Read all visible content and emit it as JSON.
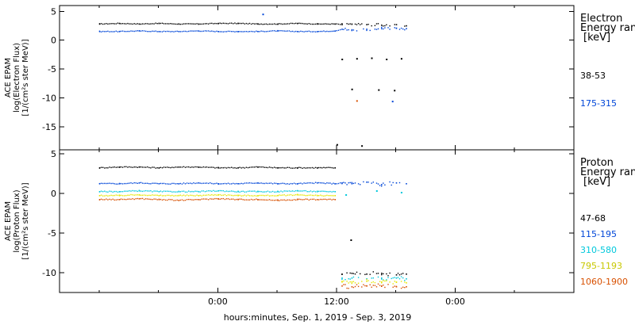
{
  "chart_data": [
    {
      "type": "scatter",
      "ylabel_lines": [
        "ACE EPAM",
        "log(Electron Flux)",
        "[1/(cm²s ster MeV)]"
      ],
      "ylim": [
        -19,
        6
      ],
      "yticks": [
        5,
        0,
        -5,
        -10,
        -15
      ],
      "legend_title": [
        "Electron",
        "Energy ran",
        "[keV]"
      ],
      "series": [
        {
          "name": "38-53",
          "color": "#000000",
          "x": [
            -12,
            -10,
            -8,
            -6,
            -4,
            -2,
            0,
            2,
            4,
            6,
            8,
            10,
            11.8,
            12.5,
            13.5,
            15,
            16.5,
            18,
            19
          ],
          "y": [
            2.9,
            3.0,
            2.9,
            3.0,
            2.9,
            2.9,
            3.0,
            3.0,
            2.9,
            2.9,
            3.0,
            2.9,
            2.9,
            2.8,
            2.9,
            2.8,
            2.7,
            2.8,
            2.6
          ]
        },
        {
          "name": "175-315",
          "color": "#0046d8",
          "x": [
            -12,
            -10,
            -8,
            -6,
            -4,
            -2,
            0,
            2,
            4,
            6,
            8,
            10,
            11.8,
            12.5,
            13.5,
            15,
            16.5,
            18,
            19
          ],
          "y": [
            1.6,
            1.6,
            1.7,
            1.6,
            1.6,
            1.7,
            1.6,
            1.6,
            1.6,
            1.7,
            1.6,
            1.6,
            1.7,
            2.0,
            1.9,
            2.0,
            2.1,
            2.2,
            2.1
          ]
        }
      ],
      "scatter_points": [
        {
          "x": 4.5,
          "y": 4.6,
          "color": "#0046d8"
        },
        {
          "x": 12.5,
          "y": -3.2,
          "color": "#000000"
        },
        {
          "x": 14,
          "y": -3.1,
          "color": "#000000"
        },
        {
          "x": 15.5,
          "y": -3.0,
          "color": "#000000"
        },
        {
          "x": 17,
          "y": -3.2,
          "color": "#000000"
        },
        {
          "x": 18.5,
          "y": -3.1,
          "color": "#000000"
        },
        {
          "x": 13.5,
          "y": -8.4,
          "color": "#000000"
        },
        {
          "x": 16.2,
          "y": -8.5,
          "color": "#000000"
        },
        {
          "x": 17.8,
          "y": -8.6,
          "color": "#000000"
        },
        {
          "x": 14,
          "y": -10.4,
          "color": "#d85000"
        },
        {
          "x": 17.6,
          "y": -10.5,
          "color": "#0046d8"
        },
        {
          "x": 12,
          "y": -18.0,
          "color": "#000000"
        },
        {
          "x": 14.5,
          "y": -18.2,
          "color": "#000000"
        }
      ]
    },
    {
      "type": "scatter",
      "ylabel_lines": [
        "ACE EPAM",
        "log(Proton Flux)",
        "[1/(cm²s ster MeV)]"
      ],
      "ylim": [
        -12.5,
        5.5
      ],
      "yticks": [
        5,
        0,
        -5,
        -10
      ],
      "legend_title": [
        "Proton",
        "Energy ran",
        "[keV]"
      ],
      "series": [
        {
          "name": "47-68",
          "color": "#000000",
          "x": [
            -12,
            -10,
            -8,
            -6,
            -4,
            -2,
            0,
            2,
            4,
            6,
            8,
            10,
            11.8,
            12.5,
            13.5,
            15,
            16.5,
            18,
            19
          ],
          "y": [
            3.3,
            3.4,
            3.4,
            3.3,
            3.4,
            3.4,
            3.3,
            3.3,
            3.4,
            3.3,
            3.3,
            3.3,
            3.3,
            -10.1,
            -10.0,
            -10.1,
            -10.0,
            -10.2,
            -10.1
          ]
        },
        {
          "name": "115-195",
          "color": "#0046d8",
          "x": [
            -12,
            -10,
            -8,
            -6,
            -4,
            -2,
            0,
            2,
            4,
            6,
            8,
            10,
            11.8,
            12.5,
            13.5,
            15,
            16.5,
            18,
            19
          ],
          "y": [
            1.3,
            1.3,
            1.4,
            1.3,
            1.3,
            1.4,
            1.3,
            1.3,
            1.4,
            1.3,
            1.3,
            1.4,
            1.3,
            1.4,
            1.3,
            1.5,
            1.2,
            1.4,
            1.3
          ]
        },
        {
          "name": "310-580",
          "color": "#00c8dc",
          "x": [
            -12,
            -10,
            -8,
            -6,
            -4,
            -2,
            0,
            2,
            4,
            6,
            8,
            10,
            11.8,
            12.5,
            13.5,
            15,
            16.5,
            18,
            19
          ],
          "y": [
            0.3,
            0.3,
            0.4,
            0.3,
            0.3,
            0.3,
            0.4,
            0.3,
            0.3,
            0.3,
            0.4,
            0.3,
            0.3,
            -10.6,
            -10.6,
            -10.7,
            -10.6,
            -10.6,
            -10.7
          ]
        },
        {
          "name": "795-1193",
          "color": "#e6e600",
          "x": [
            -12,
            -10,
            -8,
            -6,
            -4,
            -2,
            0,
            2,
            4,
            6,
            8,
            10,
            11.8,
            12.5,
            13.5,
            15,
            16.5,
            18,
            19
          ],
          "y": [
            -0.2,
            -0.2,
            -0.1,
            -0.2,
            -0.2,
            -0.2,
            -0.1,
            -0.2,
            -0.2,
            -0.2,
            -0.1,
            -0.2,
            -0.2,
            -11.1,
            -11.1,
            -11.0,
            -11.1,
            -11.1,
            -11.2
          ]
        },
        {
          "name": "1060-1900",
          "color": "#d85000",
          "x": [
            -12,
            -10,
            -8,
            -6,
            -4,
            -2,
            0,
            2,
            4,
            6,
            8,
            10,
            11.8,
            12.5,
            13.5,
            15,
            16.5,
            18,
            19
          ],
          "y": [
            -0.7,
            -0.7,
            -0.6,
            -0.7,
            -0.8,
            -0.7,
            -0.6,
            -0.7,
            -0.7,
            -0.8,
            -0.7,
            -0.7,
            -0.7,
            -11.6,
            -11.7,
            -11.6,
            -11.6,
            -11.7,
            -11.7
          ]
        }
      ],
      "scatter_points": [
        {
          "x": 13.4,
          "y": -5.8,
          "color": "#000000"
        },
        {
          "x": 12.9,
          "y": -0.1,
          "color": "#00c8dc"
        },
        {
          "x": 18.5,
          "y": 0.2,
          "color": "#00c8dc"
        },
        {
          "x": 16,
          "y": 0.4,
          "color": "#00c8dc"
        }
      ]
    }
  ],
  "x_axis": {
    "xlim": [
      -16,
      36
    ],
    "ticks": [
      0,
      12,
      24
    ],
    "tick_labels": [
      "0:00",
      "12:00",
      "0:00"
    ],
    "minor_ticks": [
      -12,
      -6,
      6,
      18,
      30
    ],
    "xlabel": "hours:minutes, Sep.  1, 2019 - Sep.  3, 2019"
  }
}
